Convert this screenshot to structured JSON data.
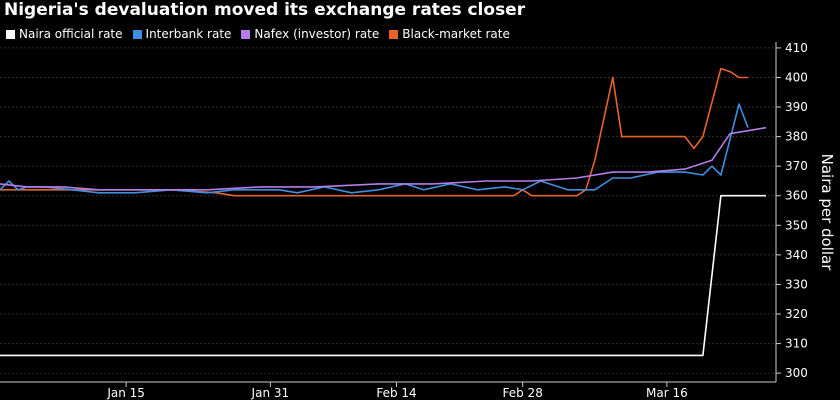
{
  "chart_data": {
    "type": "line",
    "title": "Nigeria's devaluation moved its exchange rates closer",
    "ylabel": "Naira per dollar",
    "xlabel": "",
    "ylim": [
      297,
      412
    ],
    "yticks": [
      300,
      310,
      320,
      330,
      340,
      350,
      360,
      370,
      380,
      390,
      400,
      410
    ],
    "xlim": [
      "2017-01-01",
      "2017-03-27"
    ],
    "xticks": [
      {
        "label": "Jan 15",
        "date": "2017-01-15"
      },
      {
        "label": "Jan 31",
        "date": "2017-01-31"
      },
      {
        "label": "Feb 14",
        "date": "2017-02-14"
      },
      {
        "label": "Feb 28",
        "date": "2017-02-28"
      },
      {
        "label": "Mar 16",
        "date": "2017-03-16"
      }
    ],
    "grid": "horizontal",
    "legend": "top-left",
    "series": [
      {
        "name": "Naira official rate",
        "color": "#ffffff",
        "x": [
          "2017-01-01",
          "2017-03-20",
          "2017-03-22",
          "2017-03-27"
        ],
        "values": [
          306,
          306,
          360,
          360
        ]
      },
      {
        "name": "Interbank rate",
        "color": "#3d8fe0",
        "x": [
          "2017-01-01",
          "2017-01-02",
          "2017-01-03",
          "2017-01-04",
          "2017-01-06",
          "2017-01-09",
          "2017-01-12",
          "2017-01-16",
          "2017-01-20",
          "2017-01-24",
          "2017-01-27",
          "2017-01-30",
          "2017-02-01",
          "2017-02-03",
          "2017-02-06",
          "2017-02-09",
          "2017-02-12",
          "2017-02-15",
          "2017-02-17",
          "2017-02-20",
          "2017-02-23",
          "2017-02-26",
          "2017-02-28",
          "2017-03-02",
          "2017-03-05",
          "2017-03-08",
          "2017-03-10",
          "2017-03-12",
          "2017-03-15",
          "2017-03-18",
          "2017-03-20",
          "2017-03-21",
          "2017-03-22",
          "2017-03-24",
          "2017-03-25"
        ],
        "values": [
          362,
          365,
          362,
          363,
          363,
          362,
          361,
          361,
          362,
          361,
          362,
          362,
          362,
          361,
          363,
          361,
          362,
          364,
          362,
          364,
          362,
          363,
          362,
          365,
          362,
          362,
          366,
          366,
          368,
          368,
          367,
          370,
          367,
          391,
          383
        ]
      },
      {
        "name": "Nafex (investor) rate",
        "color": "#b47ee8",
        "x": [
          "2017-01-01",
          "2017-01-04",
          "2017-01-08",
          "2017-01-12",
          "2017-01-18",
          "2017-01-24",
          "2017-01-30",
          "2017-02-05",
          "2017-02-12",
          "2017-02-18",
          "2017-02-24",
          "2017-03-01",
          "2017-03-06",
          "2017-03-10",
          "2017-03-14",
          "2017-03-18",
          "2017-03-21",
          "2017-03-23",
          "2017-03-25",
          "2017-03-27"
        ],
        "values": [
          364,
          363,
          363,
          362,
          362,
          362,
          363,
          363,
          364,
          364,
          365,
          365,
          366,
          368,
          368,
          369,
          372,
          381,
          382,
          383
        ]
      },
      {
        "name": "Black-market rate",
        "color": "#e8632a",
        "x": [
          "2017-01-01",
          "2017-01-20",
          "2017-01-25",
          "2017-01-27",
          "2017-01-29",
          "2017-01-31",
          "2017-02-27",
          "2017-02-28",
          "2017-03-01",
          "2017-03-02",
          "2017-03-06",
          "2017-03-07",
          "2017-03-08",
          "2017-03-10",
          "2017-03-11",
          "2017-03-13",
          "2017-03-15",
          "2017-03-18",
          "2017-03-19",
          "2017-03-20",
          "2017-03-22",
          "2017-03-23",
          "2017-03-24",
          "2017-03-25"
        ],
        "values": [
          362,
          362,
          361,
          360,
          360,
          360,
          360,
          362,
          360,
          360,
          360,
          362,
          372,
          400,
          380,
          380,
          380,
          380,
          376,
          380,
          403,
          402,
          400,
          400
        ]
      }
    ]
  }
}
